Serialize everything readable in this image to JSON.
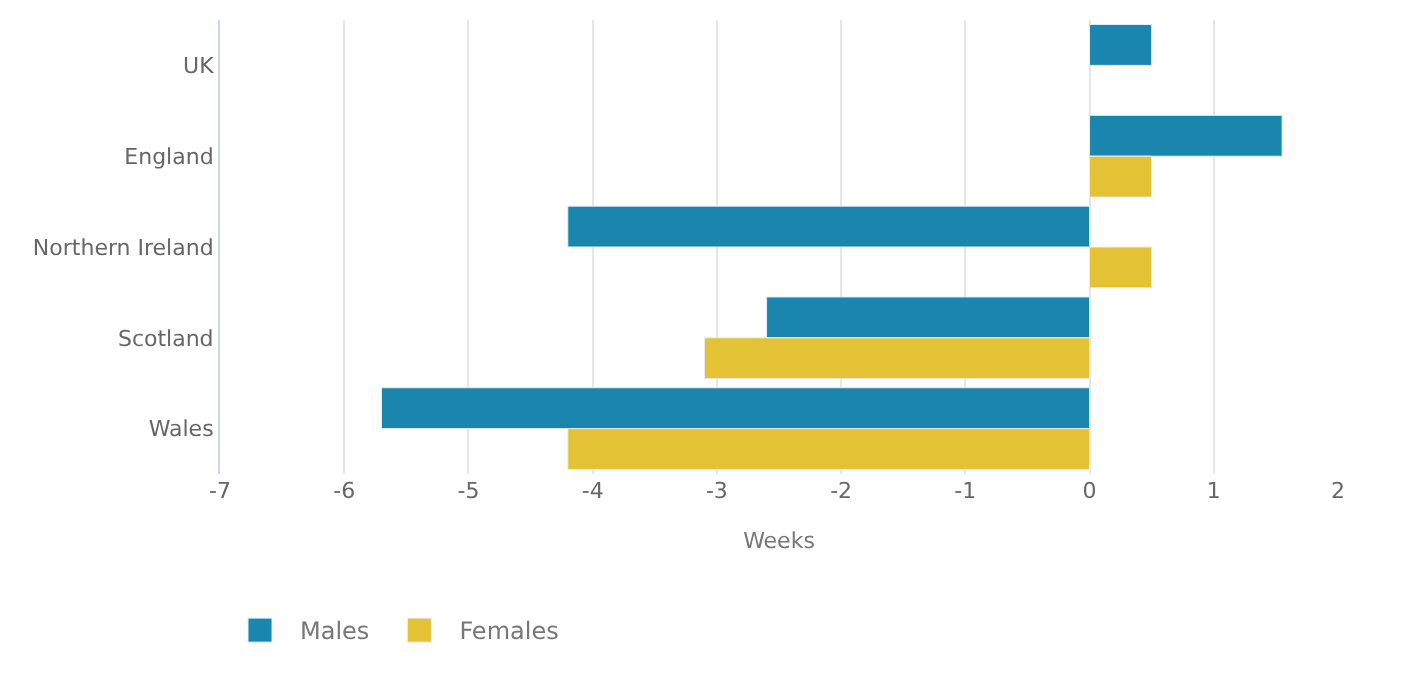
{
  "chart_data": {
    "type": "bar",
    "orientation": "horizontal",
    "categories": [
      "UK",
      "England",
      "Northern Ireland",
      "Scotland",
      "Wales"
    ],
    "series": [
      {
        "name": "Males",
        "color": "#1a85ad",
        "values": [
          0.5,
          1.55,
          -4.2,
          -2.6,
          -5.7
        ]
      },
      {
        "name": "Females",
        "color": "#e4c236",
        "values": [
          null,
          0.5,
          0.5,
          -3.1,
          -4.2
        ]
      }
    ],
    "xlabel": "Weeks",
    "xlim": [
      -7,
      2
    ],
    "xticks": [
      -7,
      -6,
      -5,
      -4,
      -3,
      -2,
      -1,
      0,
      1,
      2
    ],
    "grid": "x",
    "legend": "bottom left"
  }
}
